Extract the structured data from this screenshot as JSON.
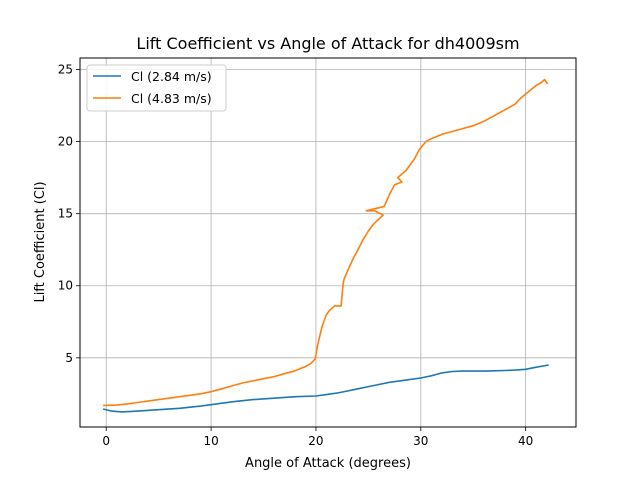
{
  "chart_data": {
    "type": "line",
    "title": "Lift Coefficient vs Angle of Attack for dh4009sm",
    "xlabel": "Angle of Attack (degrees)",
    "ylabel": "Lift Coefficient (Cl)",
    "xlim": [
      -2.5,
      44.8
    ],
    "ylim": [
      0.2,
      25.8
    ],
    "xticks": [
      0,
      10,
      20,
      30,
      40
    ],
    "yticks": [
      5,
      10,
      15,
      20,
      25
    ],
    "grid": true,
    "legend_position": "top-left",
    "series": [
      {
        "name": "Cl (2.84 m/s)",
        "color": "#1f77b4",
        "x": [
          -0.3,
          0.5,
          1.5,
          3,
          5,
          7,
          9,
          10,
          12,
          14,
          16,
          18,
          20,
          21,
          22,
          23,
          24,
          25,
          26,
          27,
          28,
          29,
          30,
          31,
          32,
          33,
          34,
          35,
          36,
          37,
          38,
          39,
          40,
          41,
          42.2
        ],
        "y": [
          1.45,
          1.3,
          1.25,
          1.3,
          1.4,
          1.5,
          1.65,
          1.75,
          1.95,
          2.1,
          2.2,
          2.3,
          2.35,
          2.45,
          2.55,
          2.7,
          2.85,
          3.0,
          3.15,
          3.3,
          3.4,
          3.5,
          3.6,
          3.75,
          3.95,
          4.05,
          4.08,
          4.08,
          4.08,
          4.1,
          4.12,
          4.15,
          4.2,
          4.35,
          4.5
        ]
      },
      {
        "name": "Cl (4.83 m/s)",
        "color": "#ff7f0e",
        "x": [
          -0.3,
          1,
          2,
          3,
          4,
          5,
          6,
          7,
          8,
          9,
          10,
          11,
          12,
          13,
          14,
          15,
          16,
          17,
          18,
          19,
          19.5,
          19.9,
          20.0,
          20.2,
          20.6,
          21.0,
          21.3,
          21.8,
          22.4,
          22.6,
          22.7,
          23.0,
          23.5,
          24.0,
          24.5,
          25.0,
          25.4,
          25.8,
          26.4,
          25.6,
          24.8,
          26.5,
          27.0,
          27.5,
          28.2,
          27.8,
          28.6,
          29.4,
          29.9,
          30.5,
          31.0,
          32.0,
          33.0,
          34.0,
          35.0,
          36.0,
          37.0,
          38.0,
          39.0,
          39.5,
          40.0,
          40.5,
          41.0,
          41.5,
          41.8,
          42.1
        ],
        "y": [
          1.7,
          1.72,
          1.8,
          1.9,
          2.0,
          2.1,
          2.2,
          2.3,
          2.4,
          2.5,
          2.65,
          2.85,
          3.05,
          3.25,
          3.4,
          3.55,
          3.7,
          3.9,
          4.1,
          4.4,
          4.6,
          4.9,
          5.2,
          6.0,
          7.2,
          8.0,
          8.3,
          8.6,
          8.6,
          10.2,
          10.5,
          11.0,
          11.8,
          12.5,
          13.2,
          13.8,
          14.2,
          14.5,
          14.9,
          15.2,
          15.2,
          15.5,
          16.3,
          17.0,
          17.2,
          17.5,
          18.0,
          18.8,
          19.5,
          20.0,
          20.2,
          20.5,
          20.7,
          20.9,
          21.1,
          21.4,
          21.8,
          22.2,
          22.6,
          23.0,
          23.3,
          23.6,
          23.9,
          24.1,
          24.3,
          24.0
        ]
      }
    ]
  }
}
